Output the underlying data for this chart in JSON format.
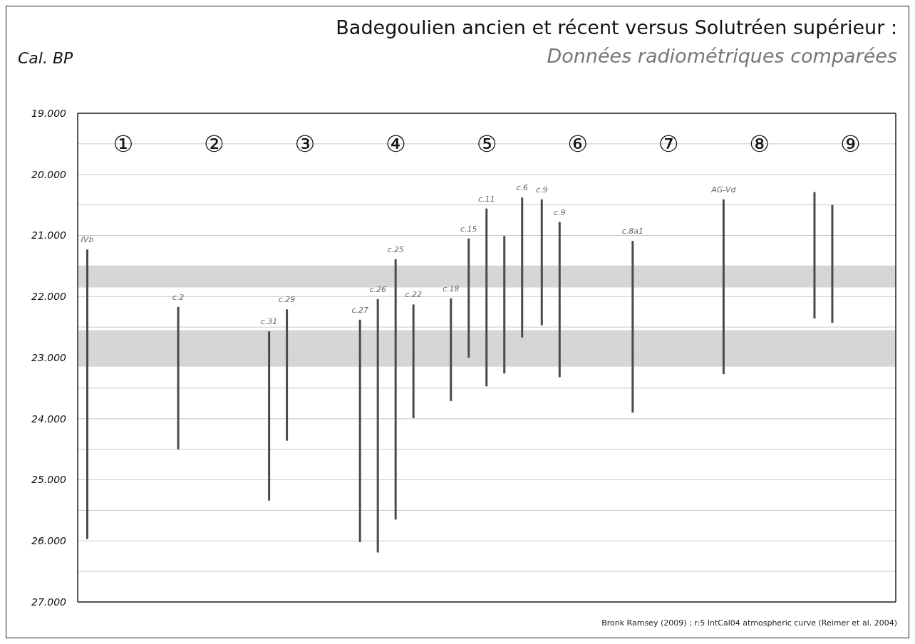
{
  "chart_data": {
    "type": "bar",
    "title": "Badegoulien ancien et récent versus Solutréen supérieur :",
    "subtitle": "Données radiométriques comparées",
    "ylabel": "Cal. BP",
    "annotations": [
      "Bronk Ramsey (2009) ; r:5 IntCal04 atmospheric curve (Reimer et al. 2004)"
    ],
    "categories": [
      "①",
      "②",
      "③",
      "④",
      "⑤",
      "⑥",
      "⑦",
      "⑧",
      "⑨"
    ],
    "series": [
      {
        "color": "#4a4a4a",
        "base": [
          21230,
          22170,
          22570,
          22380,
          22030,
          20410,
          21090,
          20410,
          20290
        ],
        "values": [
          4740,
          2330,
          2770,
          3640,
          1680,
          2060,
          2810,
          2860,
          2070
        ],
        "value_labels": [
          "IVb",
          "c.2",
          "c.31",
          "c.27",
          "c.18",
          "c.9",
          "c.8a1",
          "AG-Vd",
          null
        ]
      },
      {
        "color": "#4a4a4a",
        "base": [
          null,
          null,
          22210,
          22040,
          21050,
          20780,
          null,
          null,
          20500
        ],
        "values": [
          null,
          null,
          2150,
          4150,
          1950,
          2540,
          null,
          null,
          1930
        ],
        "value_labels": [
          null,
          null,
          "c.29",
          "c.26",
          "c.15",
          "c.9",
          null,
          null,
          null
        ]
      },
      {
        "color": "#4a4a4a",
        "base": [
          null,
          null,
          null,
          21390,
          20560,
          null,
          null,
          null,
          null
        ],
        "values": [
          null,
          null,
          null,
          4260,
          2910,
          null,
          null,
          null,
          null
        ],
        "value_labels": [
          null,
          null,
          null,
          "c.25",
          "c.11",
          null,
          null,
          null,
          null
        ]
      },
      {
        "color": "#4a4a4a",
        "base": [
          null,
          null,
          null,
          22130,
          21010,
          null,
          null,
          null,
          null
        ],
        "values": [
          null,
          null,
          null,
          1860,
          2250,
          null,
          null,
          null,
          null
        ],
        "value_labels": [
          null,
          null,
          null,
          "c.22",
          null,
          null,
          null,
          null,
          null
        ]
      },
      {
        "color": "#4a4a4a",
        "base": [
          null,
          null,
          null,
          null,
          20380,
          null,
          null,
          null,
          null
        ],
        "values": [
          null,
          null,
          null,
          null,
          2290,
          null,
          null,
          null,
          null
        ],
        "value_labels": [
          null,
          null,
          null,
          null,
          "c.6",
          null,
          null,
          null,
          null
        ]
      }
    ],
    "ylim": [
      27000,
      19000
    ],
    "yticks": [
      {
        "value": 19000,
        "label": "19.000"
      },
      {
        "value": 19500,
        "label": null
      },
      {
        "value": 20000,
        "label": "20.000"
      },
      {
        "value": 20500,
        "label": null
      },
      {
        "value": 21000,
        "label": "21.000"
      },
      {
        "value": 21500,
        "label": null
      },
      {
        "value": 22000,
        "label": "22.000"
      },
      {
        "value": 22500,
        "label": null
      },
      {
        "value": 23000,
        "label": "23.000"
      },
      {
        "value": 23500,
        "label": null
      },
      {
        "value": 24000,
        "label": "24.000"
      },
      {
        "value": 24500,
        "label": null
      },
      {
        "value": 25000,
        "label": "25.000"
      },
      {
        "value": 25500,
        "label": null
      },
      {
        "value": 26000,
        "label": "26.000"
      },
      {
        "value": 26500,
        "label": null
      },
      {
        "value": 27000,
        "label": "27.000"
      }
    ],
    "bands": [
      {
        "axis": "y",
        "from": 21500,
        "to": 21850,
        "color": "#cfcfcf"
      },
      {
        "axis": "y",
        "from": 22550,
        "to": 23150,
        "color": "#cfcfcf"
      }
    ],
    "grid": "y"
  }
}
